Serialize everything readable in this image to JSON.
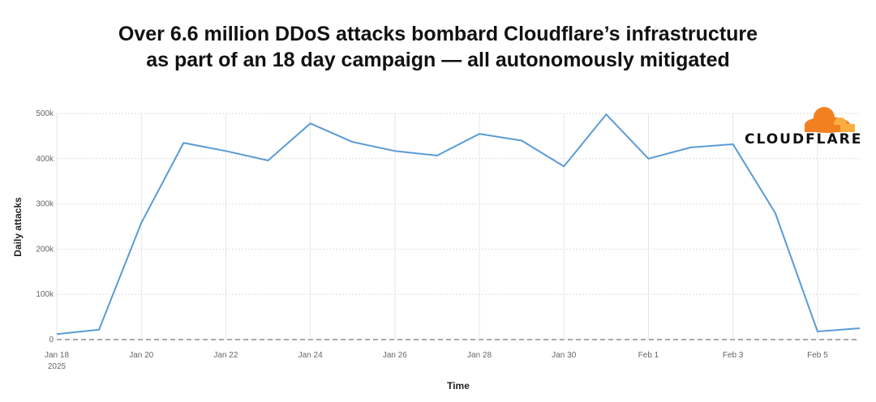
{
  "title_lines": [
    "Over 6.6 million DDoS attacks bombard Cloudflare’s infrastructure",
    "as part of an 18 day campaign — all autonomously mitigated"
  ],
  "logo_text": "CLOUDFLARE",
  "colors": {
    "line": "#5b9bd5",
    "logo_orange": "#f38020",
    "logo_light": "#faae40"
  },
  "chart_data": {
    "type": "line",
    "title": "Over 6.6 million DDoS attacks bombard Cloudflare’s infrastructure as part of an 18 day campaign — all autonomously mitigated",
    "xlabel": "Time",
    "ylabel": "Daily attacks",
    "x": [
      "2025-01-18",
      "2025-01-19",
      "2025-01-20",
      "2025-01-21",
      "2025-01-22",
      "2025-01-23",
      "2025-01-24",
      "2025-01-25",
      "2025-01-26",
      "2025-01-27",
      "2025-01-28",
      "2025-01-29",
      "2025-01-30",
      "2025-01-31",
      "2025-02-01",
      "2025-02-02",
      "2025-02-03",
      "2025-02-04",
      "2025-02-05",
      "2025-02-06"
    ],
    "values": [
      12000,
      22000,
      258000,
      435000,
      417000,
      396000,
      478000,
      437000,
      417000,
      407000,
      455000,
      440000,
      383000,
      498000,
      400000,
      425000,
      432000,
      280000,
      18000,
      25000
    ],
    "ylim": [
      0,
      500000
    ],
    "yticks": [
      {
        "v": 0,
        "label": "0"
      },
      {
        "v": 100000,
        "label": "100k"
      },
      {
        "v": 200000,
        "label": "200k"
      },
      {
        "v": 300000,
        "label": "300k"
      },
      {
        "v": 400000,
        "label": "400k"
      },
      {
        "v": 500000,
        "label": "500k"
      }
    ],
    "xticks": [
      {
        "i": 0,
        "label": "Jan 18",
        "sub": "2025"
      },
      {
        "i": 2,
        "label": "Jan 20"
      },
      {
        "i": 4,
        "label": "Jan 22"
      },
      {
        "i": 6,
        "label": "Jan 24"
      },
      {
        "i": 8,
        "label": "Jan 26"
      },
      {
        "i": 10,
        "label": "Jan 28"
      },
      {
        "i": 12,
        "label": "Jan 30"
      },
      {
        "i": 14,
        "label": "Feb 1"
      },
      {
        "i": 16,
        "label": "Feb 3"
      },
      {
        "i": 18,
        "label": "Feb 5"
      }
    ],
    "grid": true,
    "legend": "none"
  }
}
